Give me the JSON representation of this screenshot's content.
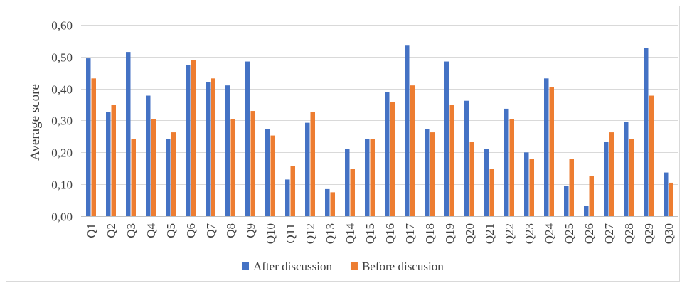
{
  "chart_data": {
    "type": "bar",
    "ylabel": "Average score",
    "xlabel": "",
    "ylim": [
      0,
      0.6
    ],
    "ytick_step": 0.1,
    "ytick_labels": [
      "0,00",
      "0,10",
      "0,20",
      "0,30",
      "0,40",
      "0,50",
      "0,60"
    ],
    "grid": true,
    "legend_position": "bottom",
    "categories": [
      "Q1",
      "Q2",
      "Q3",
      "Q4",
      "Q5",
      "Q6",
      "Q7",
      "Q8",
      "Q9",
      "Q10",
      "Q11",
      "Q12",
      "Q13",
      "Q14",
      "Q15",
      "Q16",
      "Q17",
      "Q18",
      "Q19",
      "Q20",
      "Q21",
      "Q22",
      "Q23",
      "Q24",
      "Q25",
      "Q26",
      "Q27",
      "Q28",
      "Q29",
      "Q30"
    ],
    "series": [
      {
        "name": "After discussion",
        "color": "#4472c4",
        "values": [
          0.495,
          0.327,
          0.515,
          0.378,
          0.242,
          0.473,
          0.421,
          0.41,
          0.485,
          0.273,
          0.115,
          0.293,
          0.085,
          0.21,
          0.242,
          0.39,
          0.537,
          0.273,
          0.485,
          0.362,
          0.21,
          0.337,
          0.2,
          0.432,
          0.095,
          0.032,
          0.232,
          0.295,
          0.527,
          0.137
        ]
      },
      {
        "name": "Before discusion",
        "color": "#ed7d31",
        "values": [
          0.432,
          0.348,
          0.242,
          0.305,
          0.263,
          0.49,
          0.432,
          0.305,
          0.33,
          0.253,
          0.158,
          0.327,
          0.075,
          0.148,
          0.242,
          0.358,
          0.41,
          0.263,
          0.348,
          0.232,
          0.148,
          0.305,
          0.18,
          0.405,
          0.18,
          0.127,
          0.263,
          0.242,
          0.378,
          0.105
        ]
      }
    ]
  }
}
